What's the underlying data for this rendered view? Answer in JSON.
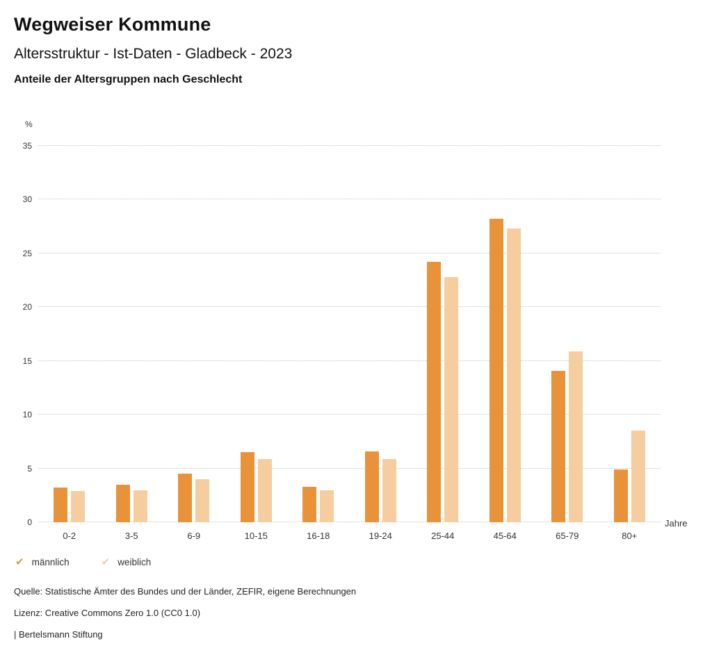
{
  "header": {
    "title": "Wegweiser Kommune",
    "subtitle": "Altersstruktur - Ist-Daten - Gladbeck - 2023",
    "chart_heading": "Anteile der Altersgruppen nach Geschlecht"
  },
  "chart_data": {
    "type": "bar",
    "title": "Anteile der Altersgruppen nach Geschlecht",
    "categories": [
      "0-2",
      "3-5",
      "6-9",
      "10-15",
      "16-18",
      "19-24",
      "25-44",
      "45-64",
      "65-79",
      "80+"
    ],
    "series": [
      {
        "name": "männlich",
        "color": "#E8923A",
        "values": [
          3.2,
          3.5,
          4.5,
          6.5,
          3.3,
          6.6,
          24.2,
          28.2,
          14.1,
          4.9
        ]
      },
      {
        "name": "weiblich",
        "color": "#F5CD9E",
        "values": [
          2.9,
          3.0,
          4.0,
          5.9,
          3.0,
          5.9,
          22.8,
          27.3,
          15.9,
          8.5
        ]
      }
    ],
    "ylabel": "%",
    "xlabel": "Jahre",
    "ylim": [
      0,
      35
    ],
    "yticks": [
      0,
      5,
      10,
      15,
      20,
      25,
      30,
      35
    ],
    "grid": "horizontal-dotted",
    "legend_position": "bottom-left"
  },
  "legend": {
    "check_glyph": "✔",
    "items": [
      {
        "label": "männlich",
        "color": "#E8923A"
      },
      {
        "label": "weiblich",
        "color": "#F5CD9E"
      }
    ]
  },
  "footer": {
    "source": "Quelle: Statistische Ämter des Bundes und der Länder, ZEFIR, eigene Berechnungen",
    "license": "Lizenz: Creative Commons Zero 1.0 (CC0 1.0)",
    "attribution": "| Bertelsmann Stiftung"
  }
}
